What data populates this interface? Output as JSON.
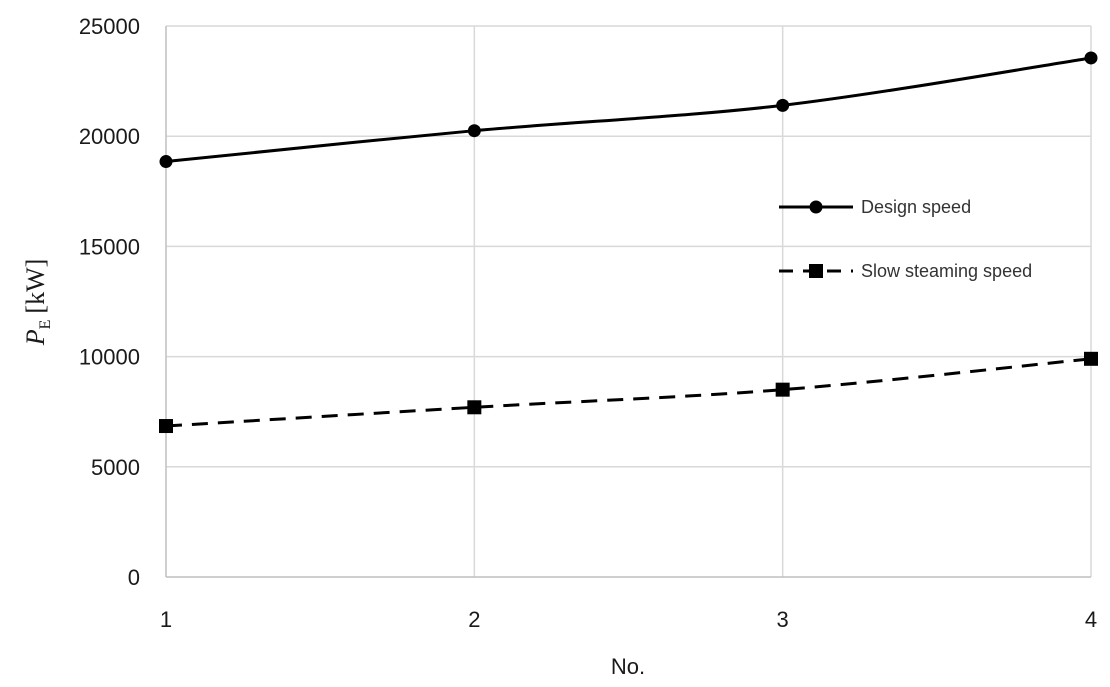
{
  "chart_data": {
    "type": "line",
    "title": "",
    "xlabel": "No.",
    "ylabel": {
      "symbol": "P",
      "subscript": "E",
      "unit": "[kW]"
    },
    "x": [
      1,
      2,
      3,
      4
    ],
    "x_tick_labels": [
      "1",
      "2",
      "3",
      "4"
    ],
    "ylim": [
      0,
      25000
    ],
    "y_ticks": [
      0,
      5000,
      10000,
      15000,
      20000,
      25000
    ],
    "y_tick_labels": [
      "0",
      "5000",
      "10000",
      "15000",
      "20000",
      "25000"
    ],
    "grid": true,
    "legend_position": "right",
    "series": [
      {
        "name": "Design speed",
        "values": [
          18850,
          20250,
          21400,
          23550
        ],
        "color": "#000000",
        "line_style": "solid",
        "marker": "circle"
      },
      {
        "name": "Slow steaming speed",
        "values": [
          6850,
          7700,
          8500,
          9900
        ],
        "color": "#000000",
        "line_style": "dashed",
        "marker": "square"
      }
    ]
  }
}
